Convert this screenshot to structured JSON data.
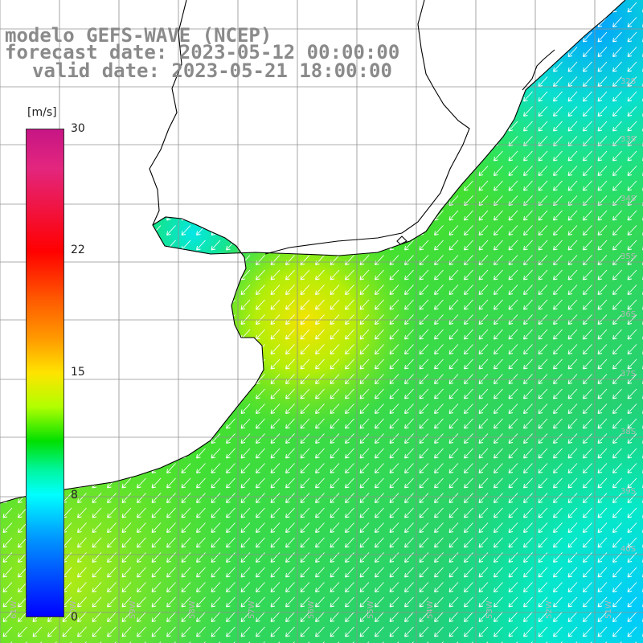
{
  "title": {
    "line1": "modelo GEFS-WAVE (NCEP)",
    "line2": "forecast date: 2023-05-12 00:00:00",
    "line3": "valid date: 2023-05-21 18:00:00"
  },
  "colorbar": {
    "unit": "[m/s]",
    "ticks": [
      "30",
      "22",
      "15",
      "8",
      "0"
    ],
    "tick_values": [
      30,
      22,
      15,
      8,
      0
    ],
    "range": [
      0,
      30
    ],
    "colors": [
      "#0000ff",
      "#00ffff",
      "#00e000",
      "#ffe400",
      "#ff0000",
      "#c71585"
    ]
  },
  "latitude_labels": [
    "32S",
    "33S",
    "34S",
    "35S",
    "36S",
    "37S",
    "38S",
    "39S",
    "40S"
  ],
  "longitude_labels": [
    "61W",
    "60W",
    "59W",
    "58W",
    "57W",
    "56W",
    "55W",
    "54W",
    "53W",
    "52W",
    "51W"
  ],
  "map": {
    "variable": "wind speed and direction",
    "wind_direction": "southwest",
    "land_color": "#ffffff",
    "coastline_color": "#000000",
    "grid_color": "#808080",
    "arrow_color": "#ffffff"
  }
}
